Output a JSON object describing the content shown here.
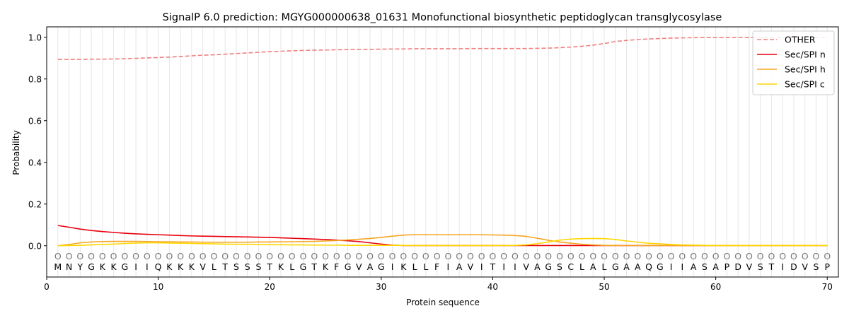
{
  "chart_data": {
    "type": "line",
    "title": "SignalP 6.0 prediction: MGYG000000638_01631 Monofunctional biosynthetic peptidoglycan transglycosylase",
    "xlabel": "Protein sequence",
    "ylabel": "Probability",
    "xlim": [
      0,
      71
    ],
    "ylim": [
      -0.15,
      1.05
    ],
    "xticks": [
      0,
      10,
      20,
      30,
      40,
      50,
      60,
      70
    ],
    "yticks": [
      0.0,
      0.2,
      0.4,
      0.6,
      0.8,
      1.0
    ],
    "ytick_labels": [
      "0.0",
      "0.2",
      "0.4",
      "0.6",
      "0.8",
      "1.0"
    ],
    "grid": "vertical lines at each residue",
    "legend_position": "top-right",
    "sequence": [
      "M",
      "N",
      "Y",
      "G",
      "K",
      "K",
      "G",
      "I",
      "I",
      "Q",
      "K",
      "K",
      "K",
      "V",
      "L",
      "T",
      "S",
      "S",
      "S",
      "T",
      "K",
      "L",
      "G",
      "T",
      "K",
      "F",
      "G",
      "V",
      "A",
      "G",
      "I",
      "K",
      "L",
      "L",
      "F",
      "I",
      "A",
      "V",
      "I",
      "T",
      "I",
      "I",
      "V",
      "A",
      "G",
      "S",
      "C",
      "L",
      "A",
      "L",
      "G",
      "A",
      "A",
      "Q",
      "G",
      "I",
      "I",
      "A",
      "S",
      "A",
      "P",
      "D",
      "V",
      "S",
      "T",
      "I",
      "D",
      "V",
      "S",
      "P"
    ],
    "residue_label": "O",
    "series": [
      {
        "name": "OTHER",
        "color": "#f08080",
        "style": "dashed",
        "values": [
          0.894,
          0.894,
          0.894,
          0.895,
          0.895,
          0.896,
          0.897,
          0.899,
          0.901,
          0.903,
          0.905,
          0.908,
          0.911,
          0.914,
          0.916,
          0.919,
          0.922,
          0.925,
          0.928,
          0.931,
          0.933,
          0.935,
          0.937,
          0.938,
          0.939,
          0.94,
          0.941,
          0.942,
          0.942,
          0.943,
          0.944,
          0.944,
          0.945,
          0.945,
          0.945,
          0.945,
          0.945,
          0.946,
          0.946,
          0.946,
          0.946,
          0.946,
          0.946,
          0.947,
          0.948,
          0.95,
          0.953,
          0.957,
          0.962,
          0.97,
          0.98,
          0.985,
          0.989,
          0.992,
          0.994,
          0.996,
          0.997,
          0.998,
          0.999,
          0.999,
          0.999,
          0.999,
          0.999,
          0.999,
          0.999,
          0.999,
          0.999,
          0.999,
          0.999,
          0.999
        ]
      },
      {
        "name": "Sec/SPI n",
        "color": "#e8000b",
        "style": "solid",
        "values": [
          0.097,
          0.089,
          0.08,
          0.073,
          0.068,
          0.064,
          0.06,
          0.057,
          0.055,
          0.053,
          0.051,
          0.049,
          0.047,
          0.046,
          0.045,
          0.044,
          0.043,
          0.042,
          0.041,
          0.04,
          0.038,
          0.036,
          0.034,
          0.032,
          0.03,
          0.027,
          0.024,
          0.02,
          0.014,
          0.008,
          0.003,
          0.001,
          0.001,
          0.001,
          0.001,
          0.001,
          0.001,
          0.001,
          0.001,
          0.001,
          0.001,
          0.001,
          0.001,
          0.001,
          0.001,
          0.001,
          0.001,
          0.001,
          0.001,
          0.001,
          0.001,
          0.001,
          0.001,
          0.001,
          0.001,
          0.001,
          0.001,
          0.001,
          0.001,
          0.001,
          0.001,
          0.001,
          0.001,
          0.001,
          0.001,
          0.001,
          0.001,
          0.001,
          0.001,
          0.001
        ]
      },
      {
        "name": "Sec/SPI h",
        "color": "#f5a623",
        "style": "solid",
        "values": [
          0.0,
          0.006,
          0.014,
          0.018,
          0.02,
          0.021,
          0.021,
          0.021,
          0.02,
          0.019,
          0.019,
          0.018,
          0.018,
          0.017,
          0.017,
          0.017,
          0.017,
          0.017,
          0.018,
          0.018,
          0.019,
          0.019,
          0.02,
          0.021,
          0.023,
          0.025,
          0.028,
          0.031,
          0.035,
          0.04,
          0.046,
          0.051,
          0.053,
          0.053,
          0.053,
          0.053,
          0.053,
          0.053,
          0.053,
          0.052,
          0.051,
          0.049,
          0.045,
          0.036,
          0.026,
          0.018,
          0.012,
          0.007,
          0.004,
          0.002,
          0.001,
          0.001,
          0.001,
          0.001,
          0.001,
          0.001,
          0.001,
          0.001,
          0.001,
          0.001,
          0.001,
          0.001,
          0.001,
          0.001,
          0.001,
          0.001,
          0.001,
          0.001,
          0.001,
          0.001
        ]
      },
      {
        "name": "Sec/SPI c",
        "color": "#ffd700",
        "style": "solid",
        "values": [
          0.0,
          0.001,
          0.002,
          0.004,
          0.006,
          0.008,
          0.011,
          0.013,
          0.014,
          0.014,
          0.013,
          0.012,
          0.011,
          0.01,
          0.009,
          0.008,
          0.007,
          0.007,
          0.006,
          0.005,
          0.005,
          0.004,
          0.004,
          0.003,
          0.003,
          0.003,
          0.002,
          0.002,
          0.002,
          0.002,
          0.002,
          0.002,
          0.001,
          0.001,
          0.001,
          0.001,
          0.001,
          0.001,
          0.001,
          0.001,
          0.001,
          0.002,
          0.004,
          0.01,
          0.018,
          0.027,
          0.032,
          0.034,
          0.035,
          0.034,
          0.03,
          0.023,
          0.017,
          0.012,
          0.009,
          0.006,
          0.004,
          0.003,
          0.002,
          0.001,
          0.001,
          0.001,
          0.001,
          0.001,
          0.001,
          0.001,
          0.001,
          0.001,
          0.001,
          0.001
        ]
      }
    ]
  }
}
